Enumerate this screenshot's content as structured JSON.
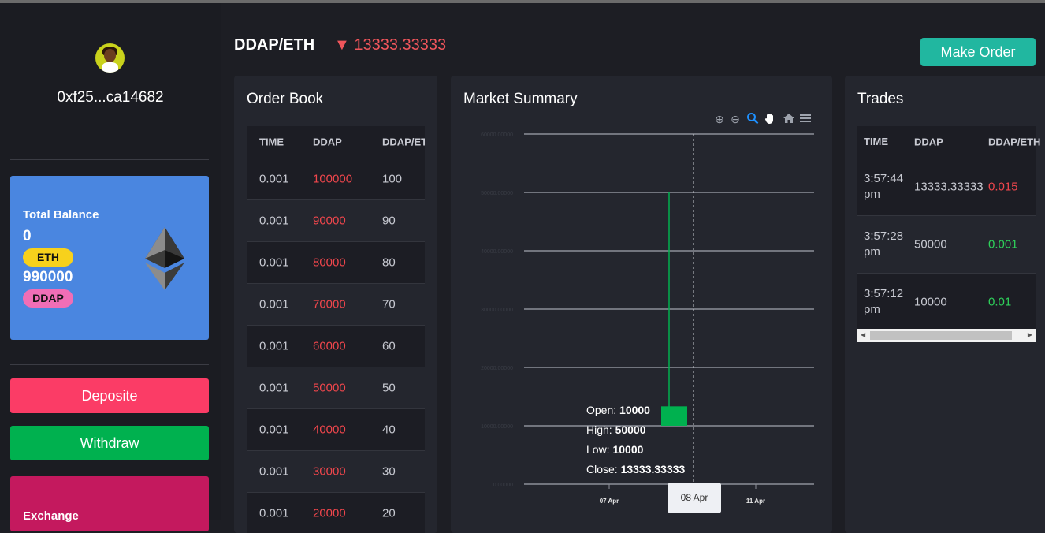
{
  "sidebar": {
    "address": "0xf25...ca14682",
    "balance": {
      "title": "Total Balance",
      "eth_amount": "0",
      "eth_label": "ETH",
      "ddap_amount": "990000",
      "ddap_label": "DDAP"
    },
    "deposit_label": "Deposite",
    "withdraw_label": "Withdraw",
    "exchange_label": "Exchange"
  },
  "header": {
    "pair": "DDAP/ETH",
    "price_arrow": "▼",
    "price": "13333.33333",
    "make_order_label": "Make Order"
  },
  "order_book": {
    "title": "Order Book",
    "columns": [
      "TIME",
      "DDAP",
      "DDAP/ETH"
    ],
    "rows": [
      [
        "0.001",
        "100000",
        "100"
      ],
      [
        "0.001",
        "90000",
        "90"
      ],
      [
        "0.001",
        "80000",
        "80"
      ],
      [
        "0.001",
        "70000",
        "70"
      ],
      [
        "0.001",
        "60000",
        "60"
      ],
      [
        "0.001",
        "50000",
        "50"
      ],
      [
        "0.001",
        "40000",
        "40"
      ],
      [
        "0.001",
        "30000",
        "30"
      ],
      [
        "0.001",
        "20000",
        "20"
      ]
    ]
  },
  "market_summary": {
    "title": "Market Summary",
    "tools": [
      "zoom-in-icon",
      "zoom-out-icon",
      "zoom-select-icon",
      "pan-hand-icon",
      "home-icon",
      "menu-icon"
    ],
    "tooltip": {
      "open_label": "Open:",
      "open": "10000",
      "high_label": "High:",
      "high": "50000",
      "low_label": "Low:",
      "low": "10000",
      "close_label": "Close:",
      "close": "13333.33333"
    },
    "hover_date": "08 Apr"
  },
  "chart_data": {
    "type": "candlestick",
    "y_ticks": [
      "0.00000",
      "10000.00000",
      "20000.00000",
      "30000.00000",
      "40000.00000",
      "50000.00000",
      "60000.00000"
    ],
    "ylim": [
      0,
      60000
    ],
    "x_ticks": [
      "07 Apr",
      "11 Apr"
    ],
    "candles": [
      {
        "date": "08 Apr",
        "open": 10000,
        "high": 50000,
        "low": 10000,
        "close": 13333.33333
      }
    ],
    "colors": {
      "up": "#00b14f",
      "grid": "#8c8f98"
    }
  },
  "trades": {
    "title": "Trades",
    "columns": [
      "TIME",
      "DDAP",
      "DDAP/ETH"
    ],
    "rows": [
      {
        "time": "3:57:44 pm",
        "ddap": "13333.33333",
        "price": "0.015",
        "side": "sell"
      },
      {
        "time": "3:57:28 pm",
        "ddap": "50000",
        "price": "0.001",
        "side": "buy"
      },
      {
        "time": "3:57:12 pm",
        "ddap": "10000",
        "price": "0.01",
        "side": "buy"
      }
    ]
  },
  "colors": {
    "accent_teal": "#21b7a0",
    "deposit_red": "#fb3c66",
    "withdraw_green": "#00b14f",
    "balance_blue": "#4a86e0",
    "price_red": "#f0555b"
  }
}
